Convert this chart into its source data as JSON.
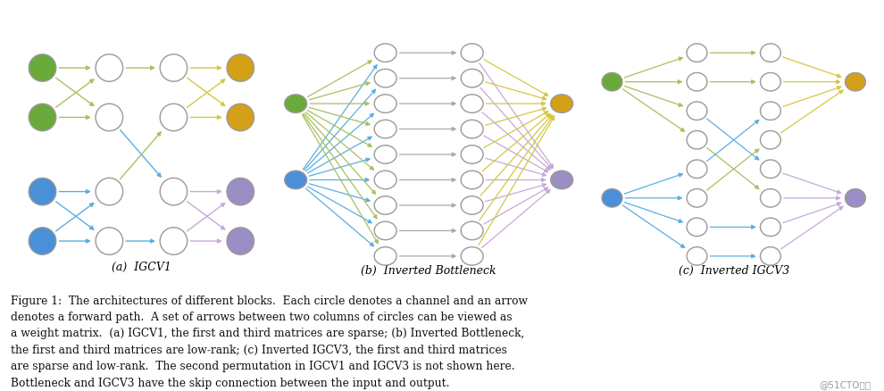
{
  "background": "#ffffff",
  "fig_caption_text": "Figure 1:  The architectures of different blocks.  Each circle denotes a channel and an arrow\ndenotes a forward path.  A set of arrows between two columns of circles can be viewed as\na weight matrix.  (a) IGCV1, the first and third matrices are sparse; (b) Inverted Bottleneck,\nthe first and third matrices are low-rank; (c) Inverted IGCV3, the first and third matrices\nare sparse and low-rank.  The second permutation in IGCV1 and IGCV3 is not shown here.\nBottleneck and IGCV3 have the skip connection between the input and output.",
  "watermark": "@51CTO博客",
  "subtitle_a": "(a)  IGCV1",
  "subtitle_b": "(b)  Inverted Bottleneck",
  "subtitle_c": "(c)  Inverted IGCV3",
  "colors": {
    "green_node": "#6aaa3a",
    "orange_node": "#d4a017",
    "blue_node": "#4a90d9",
    "purple_node": "#9b8ec4",
    "white_node": "#ffffff",
    "node_edge": "#999999",
    "green_arrow": "#a8c060",
    "yellow_arrow": "#d4c843",
    "blue_arrow": "#5baee0",
    "purple_arrow": "#c8a8d8",
    "gray_arrow": "#aaaaaa"
  }
}
